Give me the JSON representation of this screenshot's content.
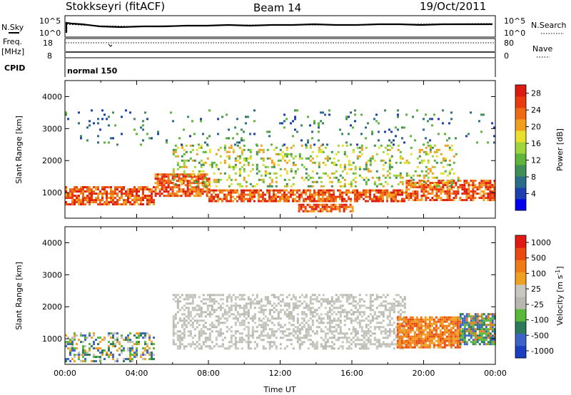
{
  "header": {
    "station": "Stokkseyri (fitACF)",
    "beam": "Beam 14",
    "date": "19/Oct/2011"
  },
  "top_panels": {
    "nsky_label": "N.Sky",
    "nsearch_label": "N.Search",
    "freq_label_1": "Freq.",
    "freq_label_2": "[MHz]",
    "nave_label": "Nave",
    "cpid_label": "CPID",
    "noise_ticks_left": [
      "10^5",
      "10^0"
    ],
    "noise_ticks_right": [
      "10^5",
      "10^0"
    ],
    "freq_ticks_left": [
      "18",
      "8"
    ],
    "nave_ticks_right": [
      "80",
      "0"
    ],
    "cpid_name": "normal 150"
  },
  "chart_data": [
    {
      "type": "heatmap",
      "panel": "power",
      "ylabel": "Slant Range [km]",
      "ylim": [
        200,
        4500
      ],
      "yticks": [
        "1000",
        "2000",
        "3000",
        "4000"
      ],
      "xlabel": "",
      "xlim": [
        "00:00",
        "24:00"
      ],
      "colorbar": {
        "label": "Power [dB]",
        "ticks": [
          "4",
          "8",
          "12",
          "16",
          "20",
          "24",
          "28"
        ],
        "range": [
          0,
          30
        ],
        "colors": [
          "#0000ee",
          "#1e3fb0",
          "#2c6c8a",
          "#3f8f56",
          "#5fb53a",
          "#9fd43a",
          "#e8e02a",
          "#f0a01e",
          "#ee6a12",
          "#e83a0e",
          "#dd1a10"
        ]
      },
      "echo_bands": [
        {
          "from": "00:00",
          "to": "05:00",
          "range_km": [
            600,
            1200
          ],
          "level": "high"
        },
        {
          "from": "05:00",
          "to": "08:00",
          "range_km": [
            900,
            1600
          ],
          "level": "high"
        },
        {
          "from": "08:00",
          "to": "19:00",
          "range_km": [
            750,
            1100
          ],
          "level": "high"
        },
        {
          "from": "19:00",
          "to": "24:00",
          "range_km": [
            750,
            1400
          ],
          "level": "high"
        },
        {
          "from": "13:00",
          "to": "16:00",
          "range_km": [
            400,
            650
          ],
          "level": "high"
        },
        {
          "from": "06:00",
          "to": "22:00",
          "range_km": [
            1200,
            2500
          ],
          "level": "medium"
        },
        {
          "from": "00:00",
          "to": "24:00",
          "range_km": [
            2500,
            3600
          ],
          "level": "low"
        }
      ]
    },
    {
      "type": "heatmap",
      "panel": "velocity",
      "ylabel": "Slant Range [km]",
      "ylim": [
        200,
        4500
      ],
      "yticks": [
        "1000",
        "2000",
        "3000",
        "4000"
      ],
      "xlabel": "Time UT",
      "xticks": [
        "00:00",
        "04:00",
        "08:00",
        "12:00",
        "16:00",
        "20:00",
        "00:00"
      ],
      "xlim": [
        "00:00",
        "24:00"
      ],
      "colorbar": {
        "label": "Velocity [m s",
        "label_sup": "-1",
        "label_end": "]",
        "ticks": [
          "1000",
          "500",
          "100",
          "25",
          "-25",
          "-100",
          "-500",
          "-1000"
        ],
        "colors": [
          "#1a3fc0",
          "#3c64c8",
          "#2c7a5a",
          "#58b83a",
          "#b8b8b0",
          "#c8c8c0",
          "#f0a020",
          "#f07a18",
          "#e84a10",
          "#e01a10"
        ]
      },
      "echo_bands": [
        {
          "from": "00:00",
          "to": "05:00",
          "range_km": [
            300,
            1200
          ],
          "velocity": "mixed"
        },
        {
          "from": "06:00",
          "to": "19:00",
          "range_km": [
            700,
            2400
          ],
          "velocity": "ground scatter"
        },
        {
          "from": "18:30",
          "to": "22:00",
          "range_km": [
            700,
            1700
          ],
          "velocity": "-100 to -500"
        },
        {
          "from": "22:00",
          "to": "24:00",
          "range_km": [
            800,
            1800
          ],
          "velocity": "100 to 500"
        }
      ]
    }
  ]
}
